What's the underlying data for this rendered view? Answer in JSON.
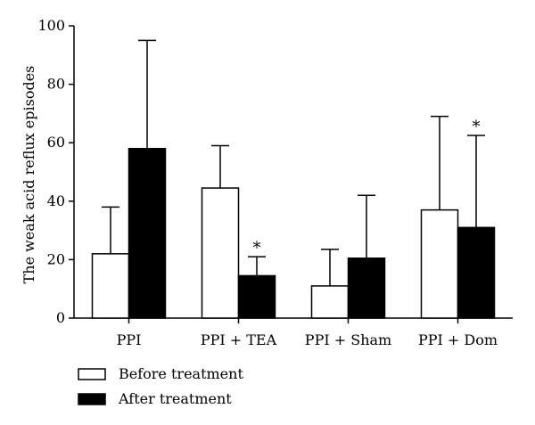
{
  "chart_data": {
    "type": "bar",
    "ylabel": "The weak acid reflux episodes",
    "ylim": [
      0,
      100
    ],
    "yticks": [
      0,
      20,
      40,
      60,
      80,
      100
    ],
    "categories": [
      "PPI",
      "PPI + TEA",
      "PPI + Sham",
      "PPI + Dom"
    ],
    "series": [
      {
        "name": "Before treatment",
        "color": "#ffffff",
        "values": [
          22,
          44.5,
          11,
          37
        ],
        "error_upper": [
          38,
          59,
          23.5,
          69
        ]
      },
      {
        "name": "After treatment",
        "color": "#000000",
        "values": [
          58,
          14.5,
          20.5,
          31
        ],
        "error_upper": [
          95,
          21,
          42,
          62.5
        ]
      }
    ],
    "annotations": [
      {
        "category": "PPI + TEA",
        "series": "After treatment",
        "text": "*"
      },
      {
        "category": "PPI + Dom",
        "series": "After treatment",
        "text": "*"
      }
    ],
    "legend_placement": "bottom-left"
  }
}
